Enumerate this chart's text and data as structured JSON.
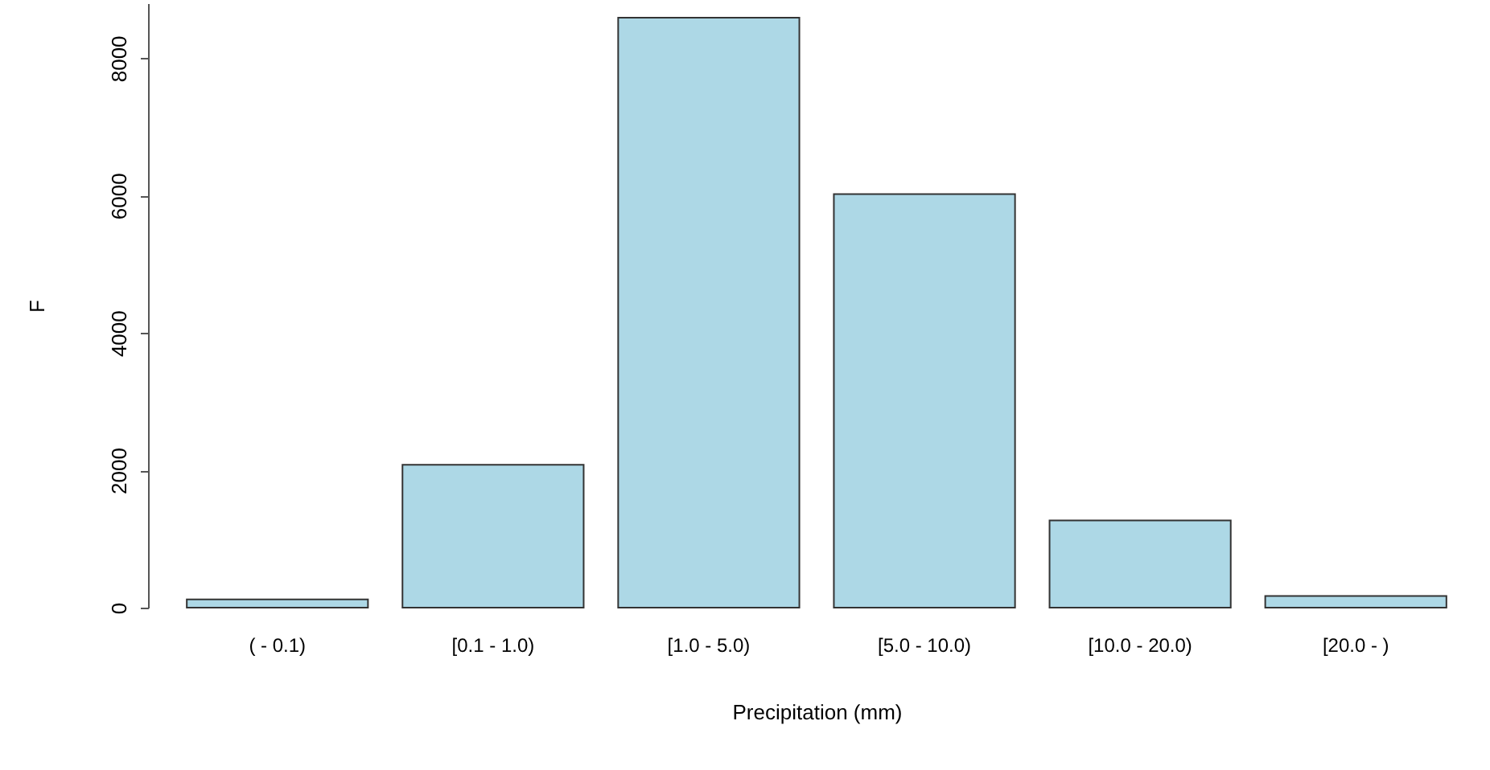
{
  "chart_data": {
    "type": "bar",
    "xlabel": "Precipitation (mm)",
    "ylabel": "F",
    "categories": [
      "( - 0.1)",
      "[0.1 - 1.0)",
      "[1.0 - 5.0)",
      "[5.0 - 10.0)",
      "[10.0 - 20.0)",
      "[20.0 - )"
    ],
    "values": [
      120,
      2080,
      8590,
      6020,
      1270,
      170
    ],
    "color": "#add8e6",
    "ylim": [
      0,
      8800
    ],
    "yticks": [
      0,
      2000,
      4000,
      6000,
      8000
    ],
    "grid": false
  }
}
